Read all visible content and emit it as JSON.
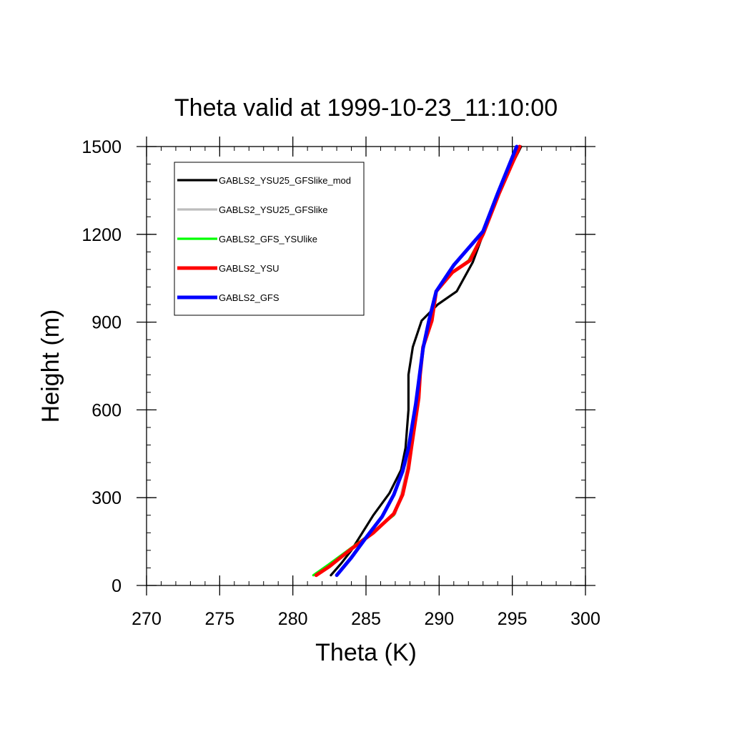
{
  "chart_data": {
    "type": "line",
    "title": "Theta valid at 1999-10-23_11:10:00",
    "xlabel": "Theta (K)",
    "ylabel": "Height (m)",
    "xlim": [
      270,
      300
    ],
    "ylim": [
      0,
      1500
    ],
    "xticks": [
      270,
      275,
      280,
      285,
      290,
      295,
      300
    ],
    "yticks": [
      0,
      300,
      600,
      900,
      1200,
      1500
    ],
    "xtick_labels": [
      "270",
      "275",
      "280",
      "285",
      "290",
      "295",
      "300"
    ],
    "ytick_labels": [
      "0",
      "300",
      "600",
      "900",
      "1200",
      "1500"
    ],
    "grid": false,
    "legend_position": "top-left",
    "series": [
      {
        "name": "GABLS2_YSU25_GFSlike_mod",
        "color": "#000000",
        "points": [
          [
            282.6,
            35
          ],
          [
            283.3,
            75
          ],
          [
            284,
            120
          ],
          [
            285.5,
            240
          ],
          [
            286.6,
            315
          ],
          [
            287.4,
            395
          ],
          [
            287.7,
            470
          ],
          [
            287.9,
            600
          ],
          [
            287.9,
            720
          ],
          [
            288.2,
            815
          ],
          [
            288.8,
            905
          ],
          [
            289.9,
            960
          ],
          [
            291.2,
            1005
          ],
          [
            292.3,
            1105
          ],
          [
            293,
            1200
          ],
          [
            294,
            1340
          ],
          [
            295.6,
            1500
          ]
        ]
      },
      {
        "name": "GABLS2_YSU25_GFSlike",
        "color": "#bdbdbd",
        "points": [
          [
            281.5,
            35
          ],
          [
            282.5,
            70
          ],
          [
            284,
            125
          ],
          [
            285.5,
            185
          ],
          [
            287,
            245
          ],
          [
            287.4,
            310
          ],
          [
            287.8,
            400
          ],
          [
            288,
            470
          ],
          [
            288.6,
            640
          ],
          [
            288.7,
            720
          ],
          [
            288.9,
            815
          ],
          [
            289.5,
            905
          ],
          [
            289.8,
            1005
          ],
          [
            290.9,
            1070
          ],
          [
            292.1,
            1110
          ],
          [
            293,
            1200
          ],
          [
            294.1,
            1340
          ],
          [
            295.4,
            1500
          ]
        ]
      },
      {
        "name": "GABLS2_GFS_YSUlike",
        "color": "#00ff00",
        "points": [
          [
            281.4,
            35
          ],
          [
            282.4,
            70
          ],
          [
            283.9,
            125
          ],
          [
            285.4,
            180
          ],
          [
            286.9,
            240
          ],
          [
            287.5,
            310
          ],
          [
            287.9,
            400
          ],
          [
            288.1,
            470
          ],
          [
            288.6,
            640
          ],
          [
            288.7,
            720
          ],
          [
            288.9,
            815
          ],
          [
            289.5,
            905
          ],
          [
            289.8,
            1005
          ],
          [
            290.9,
            1070
          ],
          [
            292,
            1110
          ],
          [
            293,
            1200
          ],
          [
            294.1,
            1340
          ],
          [
            295.5,
            1500
          ]
        ]
      },
      {
        "name": "GABLS2_YSU",
        "color": "#ff0000",
        "points": [
          [
            281.6,
            35
          ],
          [
            282.5,
            65
          ],
          [
            284,
            125
          ],
          [
            285.5,
            180
          ],
          [
            286.9,
            245
          ],
          [
            287.5,
            310
          ],
          [
            287.9,
            400
          ],
          [
            288.1,
            470
          ],
          [
            288.6,
            640
          ],
          [
            288.7,
            720
          ],
          [
            288.9,
            815
          ],
          [
            289.5,
            905
          ],
          [
            289.8,
            1005
          ],
          [
            290.9,
            1070
          ],
          [
            292.1,
            1110
          ],
          [
            293,
            1200
          ],
          [
            294.1,
            1340
          ],
          [
            295.5,
            1500
          ]
        ]
      },
      {
        "name": "GABLS2_GFS",
        "color": "#0000ff",
        "points": [
          [
            283,
            35
          ],
          [
            284,
            95
          ],
          [
            285.1,
            170
          ],
          [
            286.1,
            235
          ],
          [
            286.9,
            310
          ],
          [
            287.5,
            390
          ],
          [
            287.9,
            470
          ],
          [
            288.4,
            620
          ],
          [
            288.9,
            810
          ],
          [
            289.3,
            905
          ],
          [
            289.8,
            1005
          ],
          [
            291,
            1095
          ],
          [
            293,
            1210
          ],
          [
            294,
            1340
          ],
          [
            295.3,
            1500
          ]
        ]
      }
    ]
  }
}
